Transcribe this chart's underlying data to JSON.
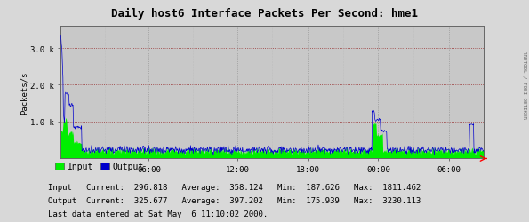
{
  "title": "Daily host6 Interface Packets Per Second: hme1",
  "ylabel": "Packets/s",
  "background_color": "#d8d8d8",
  "plot_bg_color": "#c8c8c8",
  "input_color": "#00ee00",
  "output_color": "#0000cc",
  "x_ticks": [
    0.208,
    0.417,
    0.583,
    0.75,
    0.917
  ],
  "x_tick_labels": [
    "06:00",
    "12:00",
    "18:00",
    "00:00",
    "06:00"
  ],
  "ylim": [
    0,
    3600
  ],
  "xlim": [
    0,
    1
  ],
  "watermark": "RRDTOOL / TOBI OETIKER",
  "stats_input_current": "296.818",
  "stats_input_average": "358.124",
  "stats_input_min": "187.626",
  "stats_input_max": "1811.462",
  "stats_output_current": "325.677",
  "stats_output_average": "397.202",
  "stats_output_min": "175.939",
  "stats_output_max": "3230.113",
  "footer": "Last data entered at Sat May  6 11:10:02 2000.",
  "legend_input": "Input",
  "legend_output": "Output",
  "title_fontsize": 9,
  "axis_fontsize": 6.5,
  "stats_fontsize": 6.5,
  "legend_fontsize": 7
}
